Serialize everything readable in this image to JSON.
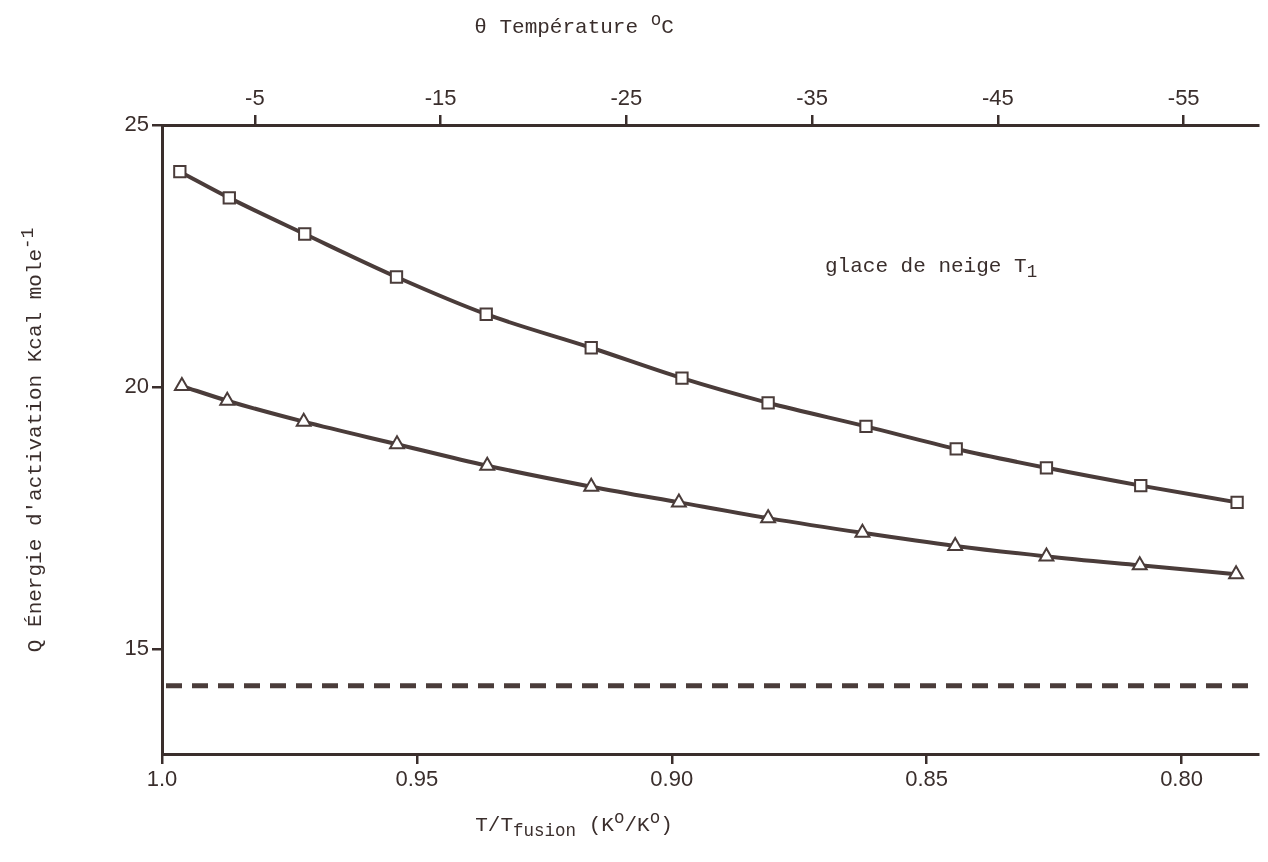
{
  "chart_data": {
    "type": "line",
    "x2label": "θ  Température $^{o}$C",
    "xlabel": "T/T$_{fusion}$  (K$^{o}$/K$^{o}$)",
    "ylabel": "Q  Énergie d'activation Kcal mole$^{-1}$",
    "annotations": [
      "glace de neige T$_{1}$"
    ],
    "xlim": [
      1.0,
      0.785
    ],
    "xticks": [
      {
        "value": 1.0,
        "label": "1.0"
      },
      0.95,
      {
        "value": 0.9,
        "label": "0.90"
      },
      0.85,
      {
        "value": 0.8,
        "label": "0.80"
      }
    ],
    "x2lim": [
      0,
      -59
    ],
    "x2ticks": [
      -5,
      -15,
      -25,
      -35,
      -45,
      -55
    ],
    "ylim": [
      13,
      25
    ],
    "yticks": [
      15,
      20,
      25
    ],
    "grid": false,
    "legend": false,
    "series": [
      {
        "color": "#4a3c3a",
        "marker": "square",
        "line_style": "solid",
        "x": [
          0.9965,
          0.9868,
          0.972,
          0.954,
          0.9364,
          0.9158,
          0.898,
          0.8811,
          0.8619,
          0.8442,
          0.8265,
          0.808,
          0.7891
        ],
        "values": [
          24.11,
          23.61,
          22.92,
          22.1,
          21.39,
          20.75,
          20.17,
          19.7,
          19.25,
          18.82,
          18.46,
          18.12,
          17.8
        ]
      },
      {
        "color": "#4a3c3a",
        "marker": "triangle",
        "line_style": "solid",
        "x": [
          0.9961,
          0.9872,
          0.9722,
          0.9539,
          0.9362,
          0.9158,
          0.8986,
          0.8811,
          0.8626,
          0.8444,
          0.8265,
          0.8082,
          0.7893
        ],
        "values": [
          20.02,
          19.74,
          19.34,
          18.91,
          18.5,
          18.1,
          17.8,
          17.5,
          17.22,
          16.97,
          16.77,
          16.6,
          16.43
        ]
      }
    ],
    "ref_lines": [
      {
        "axis": "y",
        "value": 14.3,
        "color": "#4a3c3a",
        "line_style": "dashed"
      }
    ]
  }
}
